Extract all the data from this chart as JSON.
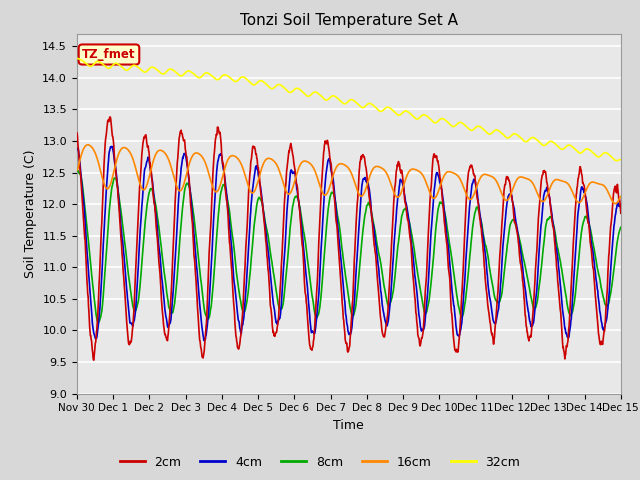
{
  "title": "Tonzi Soil Temperature Set A",
  "xlabel": "Time",
  "ylabel": "Soil Temperature (C)",
  "ylim": [
    9.0,
    14.7
  ],
  "yticks": [
    9.0,
    9.5,
    10.0,
    10.5,
    11.0,
    11.5,
    12.0,
    12.5,
    13.0,
    13.5,
    14.0,
    14.5
  ],
  "fig_bg_color": "#d8d8d8",
  "plot_bg_color": "#e8e8e8",
  "grid_color": "white",
  "line_colors": {
    "2cm": "#cc0000",
    "4cm": "#0000cc",
    "8cm": "#00aa00",
    "16cm": "#ff8800",
    "32cm": "#ffff00"
  },
  "xtick_labels": [
    "Nov 30",
    "Dec 1",
    "Dec 2",
    "Dec 3",
    "Dec 4",
    "Dec 5",
    "Dec 6",
    "Dec 7",
    "Dec 8",
    "Dec 9",
    "Dec 10",
    "Dec 11",
    "Dec 12",
    "Dec 13",
    "Dec 14",
    "Dec 15"
  ],
  "annotation_text": "TZ_fmet",
  "annotation_bg": "#ffffcc",
  "annotation_border": "#cc0000",
  "legend_labels": [
    "2cm",
    "4cm",
    "8cm",
    "16cm",
    "32cm"
  ]
}
